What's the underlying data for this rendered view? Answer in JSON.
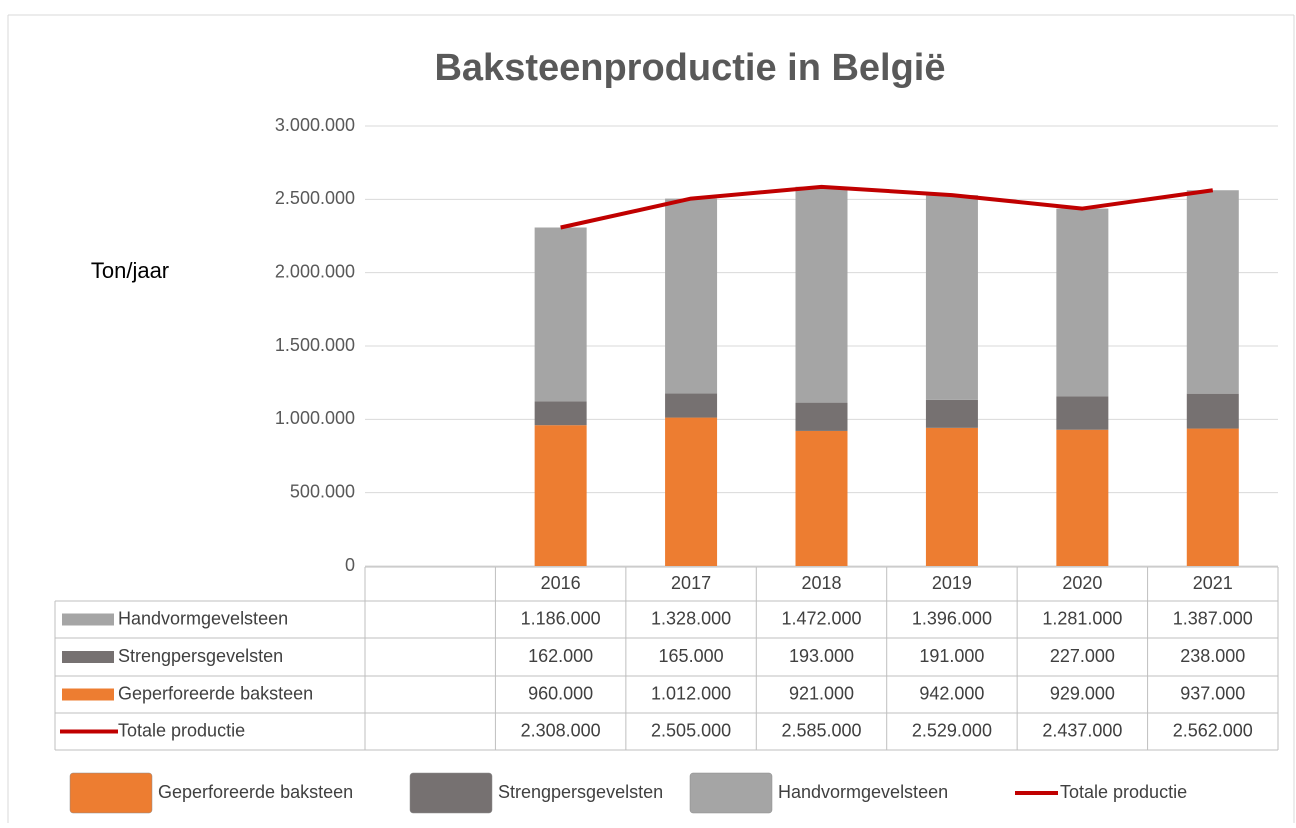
{
  "chart_data": {
    "type": "bar",
    "stacked": true,
    "title": "Baksteenproductie in België",
    "y_label": "Ton/jaar",
    "categories": [
      null,
      "2016",
      "2017",
      "2018",
      "2019",
      "2020",
      "2021"
    ],
    "ylim": [
      0,
      3000000
    ],
    "yticks": [
      0,
      {
        "value": 500000,
        "label": "500.000"
      },
      {
        "value": 1000000,
        "label": "1.000.000"
      },
      {
        "value": 1500000,
        "label": "1.500.000"
      },
      {
        "value": 2000000,
        "label": "2.000.000"
      },
      {
        "value": 2500000,
        "label": "2.500.000"
      },
      {
        "value": 3000000,
        "label": "3.000.000"
      }
    ],
    "grid": true,
    "legend": "bottom",
    "series": [
      {
        "name": "Handvormgevelsteen",
        "color": "#a5a5a5",
        "type": "bar",
        "values": [
          null,
          1186000,
          1328000,
          1472000,
          1396000,
          1281000,
          1387000
        ],
        "value_labels": [
          null,
          "1.186.000",
          "1.328.000",
          "1.472.000",
          "1.396.000",
          "1.281.000",
          "1.387.000"
        ]
      },
      {
        "name": "Strengpersgevelsten",
        "color": "#767171",
        "type": "bar",
        "values": [
          null,
          162000,
          165000,
          193000,
          191000,
          227000,
          238000
        ],
        "value_labels": [
          null,
          "162.000",
          "165.000",
          "193.000",
          "191.000",
          "227.000",
          "238.000"
        ]
      },
      {
        "name": "Geperforeerde baksteen",
        "color": "#ed7d31",
        "type": "bar",
        "values": [
          null,
          960000,
          1012000,
          921000,
          942000,
          929000,
          937000
        ],
        "value_labels": [
          null,
          "960.000",
          "1.012.000",
          "921.000",
          "942.000",
          "929.000",
          "937.000"
        ]
      },
      {
        "name": "Totale productie",
        "color": "#c00000",
        "type": "line",
        "values": [
          null,
          2308000,
          2505000,
          2585000,
          2529000,
          2437000,
          2562000
        ],
        "value_labels": [
          null,
          "2.308.000",
          "2.505.000",
          "2.585.000",
          "2.529.000",
          "2.437.000",
          "2.562.000"
        ]
      }
    ]
  }
}
